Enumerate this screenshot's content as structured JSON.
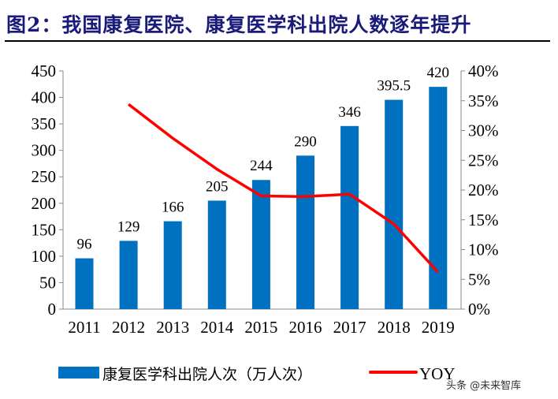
{
  "title": "图2：我国康复医院、康复医学科出院人数逐年提升",
  "watermark": "头条 @未来智库",
  "colors": {
    "bar": "#0070c0",
    "line": "#ff0000",
    "title": "#1a1a7a"
  },
  "chart_data": {
    "type": "bar+line",
    "categories": [
      "2011",
      "2012",
      "2013",
      "2014",
      "2015",
      "2016",
      "2017",
      "2018",
      "2019"
    ],
    "series": [
      {
        "name": "康复医学科出院人次（万人次）",
        "type": "bar",
        "axis": "left",
        "values": [
          96,
          129,
          166,
          205,
          244,
          290,
          346,
          395.5,
          420
        ],
        "labels": [
          "96",
          "129",
          "166",
          "205",
          "244",
          "290",
          "346",
          "395.5",
          "420"
        ]
      },
      {
        "name": "YOY",
        "type": "line",
        "axis": "right",
        "values": [
          null,
          34.4,
          28.7,
          23.5,
          19.0,
          18.9,
          19.3,
          14.3,
          6.2
        ]
      }
    ],
    "left_axis": {
      "ylim": [
        0,
        450
      ],
      "ticks": [
        "0",
        "50",
        "100",
        "150",
        "200",
        "250",
        "300",
        "350",
        "400",
        "450"
      ]
    },
    "right_axis": {
      "ylim": [
        0,
        40
      ],
      "ticks": [
        "0%",
        "5%",
        "10%",
        "15%",
        "20%",
        "25%",
        "30%",
        "35%",
        "40%"
      ]
    },
    "grid": false,
    "legend": "bottom"
  }
}
